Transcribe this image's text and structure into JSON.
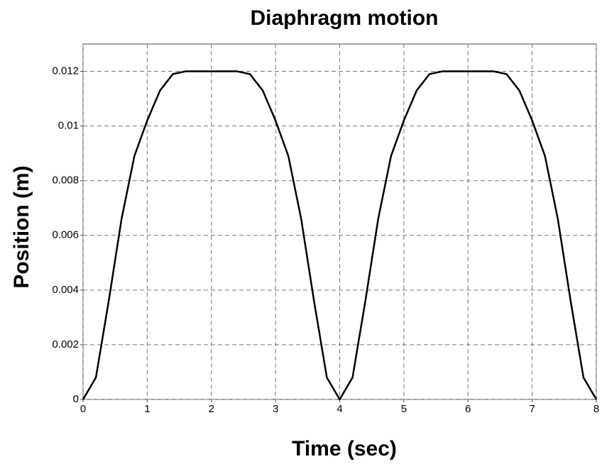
{
  "chart_data": {
    "type": "line",
    "title": "Diaphragm motion",
    "x_label": "Time (sec)",
    "y_label": "Position (m)",
    "x": [
      0,
      0.2,
      0.4,
      0.6,
      0.8,
      1.0,
      1.2,
      1.4,
      1.6,
      1.8,
      2.0,
      2.2,
      2.4,
      2.6,
      2.8,
      3.0,
      3.2,
      3.4,
      3.6,
      3.8,
      4.0,
      4.2,
      4.4,
      4.6,
      4.8,
      5.0,
      5.2,
      5.4,
      5.6,
      5.8,
      6.0,
      6.2,
      6.4,
      6.6,
      6.8,
      7.0,
      7.2,
      7.4,
      7.6,
      7.8,
      8.0
    ],
    "values": [
      0,
      0.0008,
      0.0036,
      0.0066,
      0.0089,
      0.0102,
      0.0113,
      0.0119,
      0.012,
      0.012,
      0.012,
      0.012,
      0.012,
      0.0119,
      0.0113,
      0.0102,
      0.0089,
      0.0066,
      0.0036,
      0.0008,
      0,
      0.0008,
      0.0036,
      0.0066,
      0.0089,
      0.0102,
      0.0113,
      0.0119,
      0.012,
      0.012,
      0.012,
      0.012,
      0.012,
      0.0119,
      0.0113,
      0.0102,
      0.0089,
      0.0066,
      0.0036,
      0.0008,
      0
    ],
    "color": "#000000",
    "xlim": [
      0,
      8
    ],
    "xticks": [
      0,
      1,
      2,
      3,
      4,
      5,
      6,
      7,
      8
    ],
    "ylim": [
      0,
      0.013
    ],
    "yticks": [
      0,
      0.002,
      0.004,
      0.006,
      0.008,
      0.01,
      0.012
    ],
    "grid": true
  }
}
